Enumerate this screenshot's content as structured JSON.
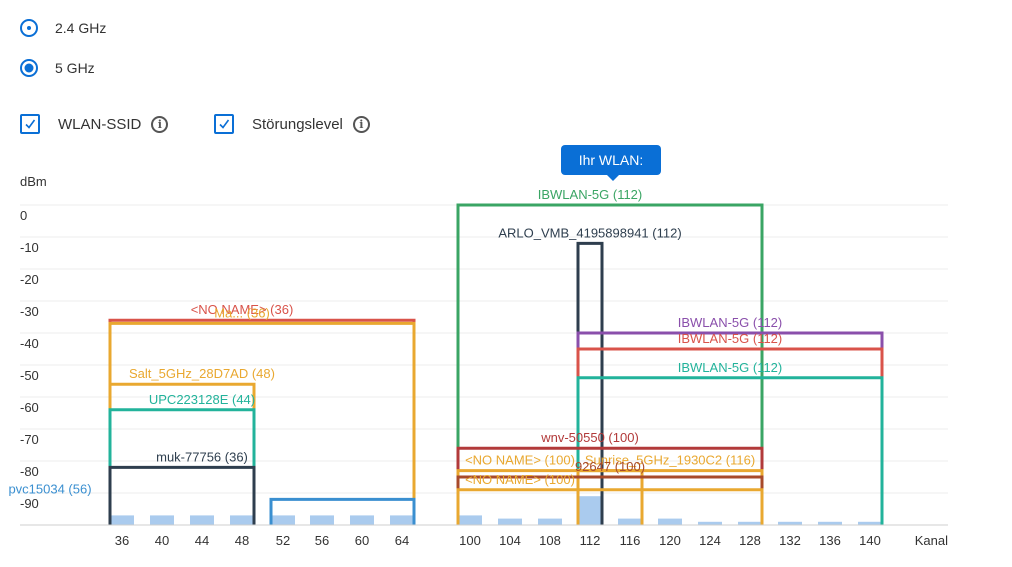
{
  "bands": [
    {
      "label": "2.4 GHz",
      "selected": false
    },
    {
      "label": "5 GHz",
      "selected": true
    }
  ],
  "toggles": [
    {
      "label": "WLAN-SSID",
      "checked": true
    },
    {
      "label": "Störungslevel",
      "checked": true
    }
  ],
  "info_symbol": "i",
  "tooltip": "Ihr WLAN:",
  "chart_data": {
    "type": "bar",
    "ylabel": "dBm",
    "xlabel": "Kanal",
    "y_ticks": [
      "0",
      "-10",
      "-20",
      "-30",
      "-40",
      "-50",
      "-60",
      "-70",
      "-80",
      "-90"
    ],
    "ylim": [
      -100,
      0
    ],
    "categories": [
      "36",
      "40",
      "44",
      "48",
      "52",
      "56",
      "60",
      "64",
      "100",
      "104",
      "108",
      "112",
      "116",
      "120",
      "124",
      "128",
      "132",
      "136",
      "140"
    ],
    "interference_values": [
      3,
      3,
      3,
      3,
      3,
      3,
      3,
      3,
      3,
      2,
      2,
      9,
      2,
      2,
      1,
      1,
      1,
      1,
      1
    ],
    "networks": [
      {
        "name": "IBWLAN-5G (112)",
        "from": "100",
        "to": "128",
        "dbm": 0,
        "color": "#3aa564",
        "label_at": "112"
      },
      {
        "name": "ARLO_VMB_4195898941 (112)",
        "from": "112",
        "to": "112",
        "dbm": -12,
        "color": "#2e3e4e",
        "label_at": "112"
      },
      {
        "name": "<NO NAME> (36)",
        "from": "36",
        "to": "64",
        "dbm": -36,
        "color": "#d9534a",
        "label_at": "48"
      },
      {
        "name": "Ma... (36)",
        "from": "36",
        "to": "64",
        "dbm": -37,
        "color": "#e9a830",
        "label_at": "48"
      },
      {
        "name": "Salt_5GHz_28D7AD (48)",
        "from": "36",
        "to": "48",
        "dbm": -56,
        "color": "#e9a830",
        "label_at": "44"
      },
      {
        "name": "UPC223128E (44)",
        "from": "36",
        "to": "48",
        "dbm": -64,
        "color": "#22b39b",
        "label_at": "44"
      },
      {
        "name": "muk-77756 (36)",
        "from": "36",
        "to": "48",
        "dbm": -82,
        "color": "#2e3e4e",
        "label_at": "44"
      },
      {
        "name": "pvc15034 (56)",
        "from": "52",
        "to": "64",
        "dbm": -92,
        "color": "#3a8fd0",
        "label_at": "58"
      },
      {
        "name": "IBWLAN-5G (112)",
        "from": "112",
        "to": "140",
        "dbm": -40,
        "color": "#8a4fab",
        "label_at": "126"
      },
      {
        "name": "IBWLAN-5G (112)",
        "from": "112",
        "to": "140",
        "dbm": -45,
        "color": "#d9534a",
        "label_at": "126"
      },
      {
        "name": "IBWLAN-5G (112)",
        "from": "112",
        "to": "140",
        "dbm": -54,
        "color": "#22b39b",
        "label_at": "126"
      },
      {
        "name": "wnv-50550 (100)",
        "from": "100",
        "to": "128",
        "dbm": -76,
        "color": "#b23a3a",
        "label_at": "112"
      },
      {
        "name": "<NO NAME> (100)",
        "from": "100",
        "to": "116",
        "dbm": -83,
        "color": "#e9a830",
        "label_at": "105"
      },
      {
        "name": "Sunrise_5GHz_1930C2 (116)",
        "from": "112",
        "to": "128",
        "dbm": -83,
        "color": "#e9a830",
        "label_at": "120"
      },
      {
        "name": "92647 (100)",
        "from": "100",
        "to": "128",
        "dbm": -85,
        "color": "#a84a2a",
        "label_at": "114"
      },
      {
        "name": "<NO NAME> (100)",
        "from": "100",
        "to": "128",
        "dbm": -89,
        "color": "#e9a830",
        "label_at": "105"
      }
    ]
  }
}
